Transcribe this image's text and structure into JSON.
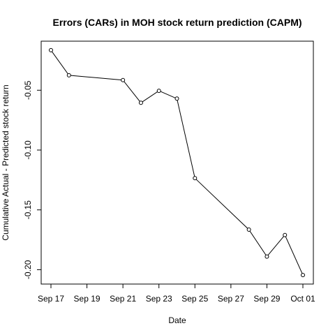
{
  "chart_data": {
    "type": "line",
    "title": "Errors (CARs) in MOH stock return prediction (CAPM)",
    "xlabel": "Date",
    "ylabel": "Cumulative Actual - Predicted stock return",
    "x": [
      "2024-09-17",
      "2024-09-18",
      "2024-09-21",
      "2024-09-22",
      "2024-09-23",
      "2024-09-24",
      "2024-09-25",
      "2024-09-28",
      "2024-09-29",
      "2024-09-30",
      "2024-10-01"
    ],
    "y": [
      -0.0165,
      -0.0375,
      -0.0415,
      -0.0605,
      -0.0505,
      -0.057,
      -0.1235,
      -0.1665,
      -0.189,
      -0.171,
      -0.2045
    ],
    "xticks": [
      "2024-09-17",
      "2024-09-19",
      "2024-09-21",
      "2024-09-23",
      "2024-09-25",
      "2024-09-27",
      "2024-09-29",
      "2024-10-01"
    ],
    "xtick_labels": [
      "Sep 17",
      "Sep 19",
      "Sep 21",
      "Sep 23",
      "Sep 25",
      "Sep 27",
      "Sep 29",
      "Oct 01"
    ],
    "yticks": [
      -0.05,
      -0.1,
      -0.15,
      -0.2
    ],
    "ytick_labels": [
      "-0.05",
      "-0.10",
      "-0.15",
      "-0.20"
    ],
    "xlim": [
      "2024-09-16",
      "2024-10-01"
    ],
    "ylim": [
      -0.212,
      -0.009
    ],
    "grid": false,
    "legend": "none",
    "line_color": "#000000",
    "marker": "open-circle"
  }
}
